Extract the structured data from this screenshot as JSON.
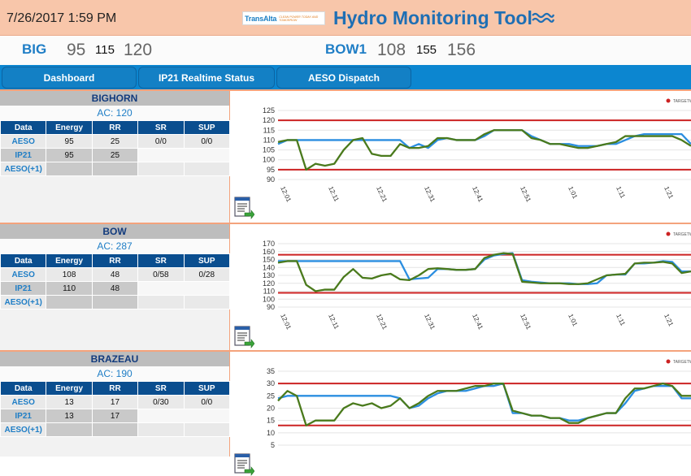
{
  "header": {
    "datetime": "7/26/2017 1:59 PM",
    "logo_text": "TransAlta",
    "logo_tagline": "CLEAN POWER TODAY AND TOMORROW",
    "title": "Hydro Monitoring Tool"
  },
  "summary": [
    {
      "name": "BIG",
      "a": "95",
      "b": "115",
      "c": "120"
    },
    {
      "name": "BOW1",
      "a": "108",
      "b": "155",
      "c": "156"
    }
  ],
  "tabs": [
    {
      "label": "Dashboard"
    },
    {
      "label": "IP21 Realtime Status"
    },
    {
      "label": "AESO Dispatch"
    }
  ],
  "table_headers": [
    "Data",
    "Energy",
    "RR",
    "SR",
    "SUP"
  ],
  "row_labels": [
    "AESO",
    "IP21",
    "AESO(+1)"
  ],
  "legend_label": "TARGETW",
  "colors": {
    "target": "#cc2222",
    "blue": "#2b8ee0",
    "green": "#4a7a1c"
  },
  "x_ticks": [
    "12:01",
    "12:11",
    "12:21",
    "12:31",
    "12:41",
    "12:51",
    "1:01",
    "1:11",
    "1:21"
  ],
  "panels": [
    {
      "name": "BIGHORN",
      "ac": "AC: 120",
      "aeso": {
        "energy": "95",
        "rr": "25",
        "sr": "0/0",
        "sup": "0/0"
      },
      "ip21": {
        "energy": "95",
        "rr": "25"
      },
      "chart_data": {
        "type": "line",
        "title": "",
        "y_ticks": [
          90,
          95,
          100,
          105,
          110,
          115,
          120,
          125
        ],
        "ylim": [
          90,
          125
        ],
        "target_lines": [
          120,
          95
        ],
        "x": [
          0,
          2,
          4,
          6,
          8,
          10,
          12,
          14,
          16,
          18,
          20,
          22,
          24,
          26,
          28,
          30,
          32,
          34,
          36,
          38,
          40,
          42,
          44,
          46,
          48,
          50,
          52,
          54,
          56,
          58,
          60,
          62,
          64,
          66,
          68,
          70,
          72,
          74,
          76,
          78,
          80,
          82,
          84,
          86,
          88
        ],
        "series": [
          {
            "color": "#2b8ee0",
            "values": [
              108,
              110,
              110,
              110,
              110,
              110,
              110,
              110,
              110,
              110,
              110,
              110,
              110,
              110,
              106,
              108,
              106,
              110,
              111,
              110,
              110,
              110,
              112,
              115,
              115,
              115,
              115,
              112,
              110,
              108,
              108,
              108,
              107,
              107,
              107,
              108,
              108,
              110,
              112,
              113,
              113,
              113,
              113,
              113,
              108
            ]
          },
          {
            "color": "#4a7a1c",
            "values": [
              109,
              110,
              110,
              95,
              98,
              97,
              98,
              105,
              110,
              111,
              103,
              102,
              102,
              108,
              106,
              106,
              107,
              111,
              111,
              110,
              110,
              110,
              113,
              115,
              115,
              115,
              115,
              111,
              110,
              108,
              108,
              107,
              106,
              106,
              107,
              108,
              109,
              112,
              112,
              112,
              112,
              112,
              112,
              110,
              107
            ]
          }
        ]
      }
    },
    {
      "name": "BOW",
      "ac": "AC: 287",
      "aeso": {
        "energy": "108",
        "rr": "48",
        "sr": "0/58",
        "sup": "0/28"
      },
      "ip21": {
        "energy": "110",
        "rr": "48"
      },
      "chart_data": {
        "type": "line",
        "title": "",
        "y_ticks": [
          90,
          100,
          110,
          120,
          130,
          140,
          150,
          160,
          170
        ],
        "ylim": [
          90,
          170
        ],
        "target_lines": [
          156,
          108
        ],
        "x": [
          0,
          2,
          4,
          6,
          8,
          10,
          12,
          14,
          16,
          18,
          20,
          22,
          24,
          26,
          28,
          30,
          32,
          34,
          36,
          38,
          40,
          42,
          44,
          46,
          48,
          50,
          52,
          54,
          56,
          58,
          60,
          62,
          64,
          66,
          68,
          70,
          72,
          74,
          76,
          78,
          80,
          82,
          84,
          86,
          88
        ],
        "series": [
          {
            "color": "#2b8ee0",
            "values": [
              148,
              148,
              148,
              148,
              148,
              148,
              148,
              148,
              148,
              148,
              148,
              148,
              148,
              148,
              125,
              126,
              127,
              138,
              138,
              137,
              137,
              138,
              150,
              155,
              157,
              158,
              124,
              122,
              121,
              120,
              120,
              120,
              119,
              119,
              120,
              130,
              131,
              131,
              145,
              145,
              146,
              148,
              147,
              135,
              135
            ]
          },
          {
            "color": "#4a7a1c",
            "values": [
              146,
              148,
              148,
              118,
              110,
              112,
              112,
              128,
              138,
              127,
              126,
              130,
              132,
              125,
              124,
              130,
              138,
              139,
              138,
              137,
              137,
              138,
              152,
              156,
              158,
              157,
              122,
              121,
              120,
              120,
              120,
              119,
              119,
              120,
              125,
              130,
              131,
              132,
              145,
              146,
              146,
              147,
              145,
              133,
              135
            ]
          }
        ]
      }
    },
    {
      "name": "BRAZEAU",
      "ac": "AC: 190",
      "aeso": {
        "energy": "13",
        "rr": "17",
        "sr": "0/30",
        "sup": "0/0"
      },
      "ip21": {
        "energy": "13",
        "rr": "17"
      },
      "chart_data": {
        "type": "line",
        "title": "",
        "y_ticks": [
          5,
          10,
          15,
          20,
          25,
          30,
          35
        ],
        "ylim": [
          5,
          35
        ],
        "target_lines": [
          30,
          13
        ],
        "x": [
          0,
          2,
          4,
          6,
          8,
          10,
          12,
          14,
          16,
          18,
          20,
          22,
          24,
          26,
          28,
          30,
          32,
          34,
          36,
          38,
          40,
          42,
          44,
          46,
          48,
          50,
          52,
          54,
          56,
          58,
          60,
          62,
          64,
          66,
          68,
          70,
          72,
          74,
          76,
          78,
          80,
          82,
          84,
          86,
          88
        ],
        "series": [
          {
            "color": "#2b8ee0",
            "values": [
              24,
              25,
              25,
              25,
              25,
              25,
              25,
              25,
              25,
              25,
              25,
              25,
              25,
              24,
              20,
              21,
              24,
              26,
              27,
              27,
              27,
              28,
              29,
              29,
              30,
              18,
              18,
              17,
              17,
              16,
              16,
              15,
              15,
              16,
              17,
              18,
              18,
              22,
              27,
              28,
              29,
              29,
              29,
              24,
              24
            ]
          },
          {
            "color": "#4a7a1c",
            "values": [
              23,
              27,
              25,
              13,
              15,
              15,
              15,
              20,
              22,
              21,
              22,
              20,
              21,
              24,
              20,
              22,
              25,
              27,
              27,
              27,
              28,
              29,
              29,
              30,
              30,
              19,
              18,
              17,
              17,
              16,
              16,
              14,
              14,
              16,
              17,
              18,
              18,
              24,
              28,
              28,
              29,
              30,
              29,
              25,
              25
            ]
          }
        ]
      }
    }
  ]
}
